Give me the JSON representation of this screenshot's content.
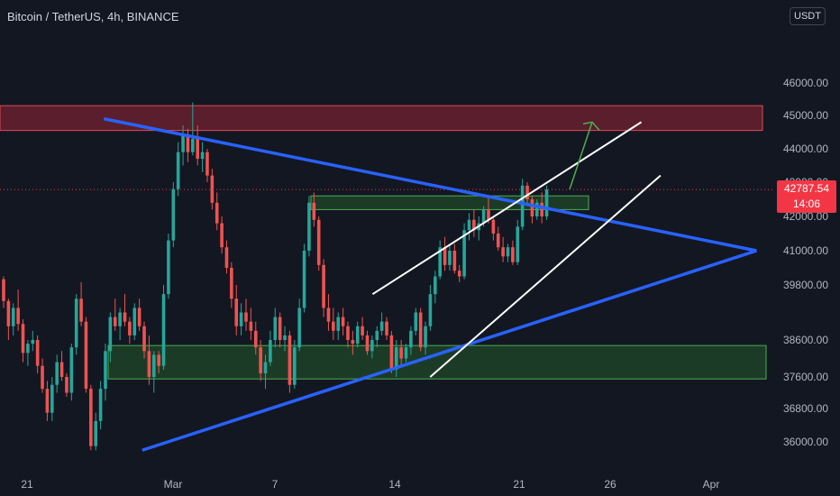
{
  "header": {
    "title": "Bitcoin / TetherUS, 4h, BINANCE",
    "currency_button": "USDT"
  },
  "price_tag": {
    "price": "42787.54",
    "countdown": "14:06"
  },
  "colors": {
    "background": "#131722",
    "up_candle": "#26a69a",
    "down_candle": "#ef5350",
    "trendline": "#2962ff",
    "channel": "#ffffff",
    "resistance_zone": "#b2283a",
    "support_zone": "#2e7d32",
    "projection_arrow": "#4caf50",
    "price_tag": "#f23645",
    "axis_text": "#b2b5be"
  },
  "chart_data": {
    "type": "candlestick",
    "symbol": "Bitcoin / TetherUS",
    "interval": "4h",
    "exchange": "BINANCE",
    "current_price": 42787.54,
    "y_axis_ticks": [
      {
        "label": "46000.00",
        "value": 46000
      },
      {
        "label": "45000.00",
        "value": 45000
      },
      {
        "label": "44000.00",
        "value": 44000
      },
      {
        "label": "43000.00",
        "value": 43000
      },
      {
        "label": "42000.00",
        "value": 42000
      },
      {
        "label": "41000.00",
        "value": 41000
      },
      {
        "label": "39800.00",
        "value": 39800
      },
      {
        "label": "38600.00",
        "value": 38600
      },
      {
        "label": "37600.00",
        "value": 37600
      },
      {
        "label": "36800.00",
        "value": 36800
      },
      {
        "label": "36000.00",
        "value": 36000
      }
    ],
    "x_axis_ticks": [
      "21",
      "Mar",
      "7",
      "14",
      "21",
      "26",
      "Apr"
    ],
    "zones": [
      {
        "name": "resistance",
        "from": 44550,
        "to": 45300
      },
      {
        "name": "support",
        "from": 37550,
        "to": 38450
      },
      {
        "name": "breakout-retest",
        "from": 42200,
        "to": 42600
      }
    ],
    "candles": [
      [
        40000,
        40100,
        39300,
        39450
      ],
      [
        39450,
        39500,
        38600,
        38900
      ],
      [
        38900,
        39400,
        38700,
        39300
      ],
      [
        39300,
        39700,
        38800,
        38950
      ],
      [
        38950,
        39050,
        38000,
        38250
      ],
      [
        38250,
        38600,
        37900,
        38500
      ],
      [
        38500,
        38800,
        38300,
        38600
      ],
      [
        38600,
        38700,
        37700,
        37900
      ],
      [
        37900,
        38100,
        37200,
        37300
      ],
      [
        37300,
        37500,
        36500,
        36700
      ],
      [
        36700,
        37600,
        36500,
        37400
      ],
      [
        37400,
        38200,
        37200,
        38000
      ],
      [
        38000,
        38300,
        37500,
        37600
      ],
      [
        37600,
        37700,
        37100,
        37200
      ],
      [
        37200,
        38500,
        37000,
        38400
      ],
      [
        38400,
        39600,
        38200,
        39500
      ],
      [
        39500,
        39900,
        38900,
        39000
      ],
      [
        39000,
        39100,
        37200,
        37300
      ],
      [
        37300,
        37400,
        35800,
        35900
      ],
      [
        35900,
        36700,
        35800,
        36500
      ],
      [
        36500,
        37500,
        36300,
        37300
      ],
      [
        37300,
        38500,
        37000,
        38300
      ],
      [
        38300,
        39200,
        38000,
        39100
      ],
      [
        39100,
        39500,
        38800,
        38900
      ],
      [
        38900,
        39300,
        38600,
        39200
      ],
      [
        39200,
        39600,
        38900,
        39000
      ],
      [
        39000,
        39100,
        38500,
        38700
      ],
      [
        38700,
        39400,
        38600,
        39300
      ],
      [
        39300,
        39500,
        38800,
        38900
      ],
      [
        38900,
        39000,
        38100,
        38300
      ],
      [
        38300,
        38700,
        37400,
        37600
      ],
      [
        37600,
        38300,
        37200,
        38200
      ],
      [
        38200,
        38300,
        37700,
        37900
      ],
      [
        37900,
        39800,
        37800,
        39600
      ],
      [
        39600,
        41500,
        39500,
        41300
      ],
      [
        41300,
        43000,
        41100,
        42800
      ],
      [
        42800,
        44200,
        42600,
        43900
      ],
      [
        43900,
        44700,
        43500,
        44400
      ],
      [
        44400,
        44600,
        43600,
        43900
      ],
      [
        43900,
        45400,
        43800,
        44300
      ],
      [
        44300,
        44700,
        43500,
        43700
      ],
      [
        43700,
        44200,
        43300,
        43900
      ],
      [
        43900,
        44000,
        43000,
        43200
      ],
      [
        43200,
        43400,
        42200,
        42400
      ],
      [
        42400,
        42700,
        41600,
        41800
      ],
      [
        41800,
        42000,
        40900,
        41100
      ],
      [
        41100,
        41300,
        40200,
        40400
      ],
      [
        40400,
        40600,
        39300,
        39500
      ],
      [
        39500,
        39800,
        38700,
        38900
      ],
      [
        38900,
        39400,
        38700,
        39200
      ],
      [
        39200,
        39500,
        38800,
        39000
      ],
      [
        39000,
        39300,
        38600,
        38800
      ],
      [
        38800,
        39000,
        38200,
        38400
      ],
      [
        38400,
        38600,
        37500,
        37700
      ],
      [
        37700,
        38200,
        37300,
        38000
      ],
      [
        38000,
        38800,
        37900,
        38600
      ],
      [
        38600,
        39300,
        38400,
        39100
      ],
      [
        39100,
        39200,
        38400,
        38600
      ],
      [
        38600,
        38900,
        38300,
        38700
      ],
      [
        38700,
        38800,
        37200,
        37400
      ],
      [
        37400,
        38600,
        37300,
        38400
      ],
      [
        38400,
        39500,
        38300,
        39300
      ],
      [
        39300,
        41200,
        39200,
        41000
      ],
      [
        41000,
        42600,
        40800,
        42400
      ],
      [
        42400,
        42700,
        41700,
        41900
      ],
      [
        41900,
        42000,
        40300,
        40500
      ],
      [
        40500,
        40700,
        39100,
        39300
      ],
      [
        39300,
        39600,
        38800,
        39000
      ],
      [
        39000,
        39300,
        38600,
        38800
      ],
      [
        38800,
        39200,
        38600,
        39100
      ],
      [
        39100,
        39300,
        38700,
        38900
      ],
      [
        38900,
        39000,
        38400,
        38600
      ],
      [
        38600,
        38800,
        38200,
        38500
      ],
      [
        38500,
        39000,
        38400,
        38900
      ],
      [
        38900,
        39100,
        38600,
        38700
      ],
      [
        38700,
        38800,
        38200,
        38300
      ],
      [
        38300,
        38700,
        38100,
        38600
      ],
      [
        38600,
        38900,
        38400,
        38800
      ],
      [
        38800,
        39200,
        38700,
        39000
      ],
      [
        39000,
        39100,
        38600,
        38700
      ],
      [
        38700,
        38800,
        37700,
        37800
      ],
      [
        37800,
        38600,
        37600,
        38400
      ],
      [
        38400,
        38600,
        37900,
        38100
      ],
      [
        38100,
        38500,
        38000,
        38400
      ],
      [
        38400,
        38900,
        38200,
        38800
      ],
      [
        38800,
        39300,
        38700,
        39200
      ],
      [
        39200,
        39300,
        38300,
        38400
      ],
      [
        38400,
        39000,
        38200,
        38900
      ],
      [
        38900,
        39800,
        38800,
        39600
      ],
      [
        39600,
        40300,
        39400,
        40100
      ],
      [
        40100,
        41300,
        40000,
        41100
      ],
      [
        41100,
        41400,
        40300,
        40500
      ],
      [
        40500,
        41200,
        40300,
        41000
      ],
      [
        41000,
        41200,
        40200,
        40300
      ],
      [
        40300,
        40500,
        39900,
        40100
      ],
      [
        40100,
        41800,
        40000,
        41600
      ],
      [
        41600,
        42100,
        41300,
        41900
      ],
      [
        41900,
        42200,
        41400,
        41600
      ],
      [
        41600,
        42000,
        41300,
        41800
      ],
      [
        41800,
        42300,
        41700,
        42200
      ],
      [
        42200,
        42600,
        41800,
        41900
      ],
      [
        41900,
        42000,
        41300,
        41500
      ],
      [
        41500,
        41700,
        41000,
        41100
      ],
      [
        41100,
        41400,
        40600,
        40800
      ],
      [
        40800,
        41200,
        40600,
        41100
      ],
      [
        41100,
        41300,
        40500,
        40600
      ],
      [
        40600,
        41900,
        40500,
        41700
      ],
      [
        41700,
        43100,
        41600,
        42900
      ],
      [
        42900,
        43000,
        42300,
        42500
      ],
      [
        42500,
        42600,
        41800,
        42000
      ],
      [
        42000,
        42500,
        41900,
        42400
      ],
      [
        42400,
        42700,
        41800,
        42000
      ],
      [
        42000,
        42900,
        41900,
        42787.54
      ]
    ],
    "blue_triangle": {
      "upper_trendline": [
        {
          "date": "Feb 25",
          "price": 44900
        },
        {
          "date": "Mar 31",
          "price": 41000
        }
      ],
      "lower_trendline": [
        {
          "date": "Feb 27",
          "price": 35800
        },
        {
          "date": "Mar 31",
          "price": 41000
        }
      ]
    },
    "white_channel": {
      "upper": [
        {
          "date": "Mar 11",
          "price": 39600
        },
        {
          "date": "Mar 25",
          "price": 44800
        }
      ],
      "lower": [
        {
          "date": "Mar 14",
          "price": 37600
        },
        {
          "date": "Mar 26",
          "price": 43200
        }
      ]
    },
    "projection_arrow": {
      "from_price": 42787.54,
      "to_price": 44800
    }
  }
}
